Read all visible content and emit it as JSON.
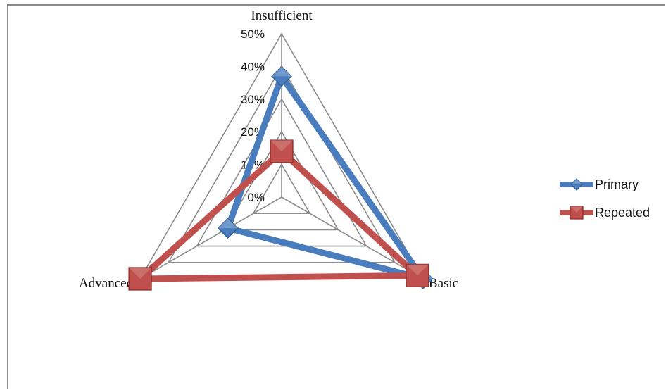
{
  "chart_data": {
    "type": "radar",
    "axes": [
      "Insufficient",
      "Basic",
      "Advanced"
    ],
    "ticks": [
      "0%",
      "10%",
      "20%",
      "30%",
      "40%",
      "50%"
    ],
    "range": [
      0,
      50
    ],
    "series": [
      {
        "name": "Primary",
        "values": [
          37,
          50,
          19
        ],
        "color": "#4a7dbd",
        "marker": "diamond"
      },
      {
        "name": "Repeated",
        "values": [
          14,
          48,
          50
        ],
        "color": "#c0504d",
        "marker": "square"
      }
    ],
    "grid": true,
    "legend": "right"
  }
}
